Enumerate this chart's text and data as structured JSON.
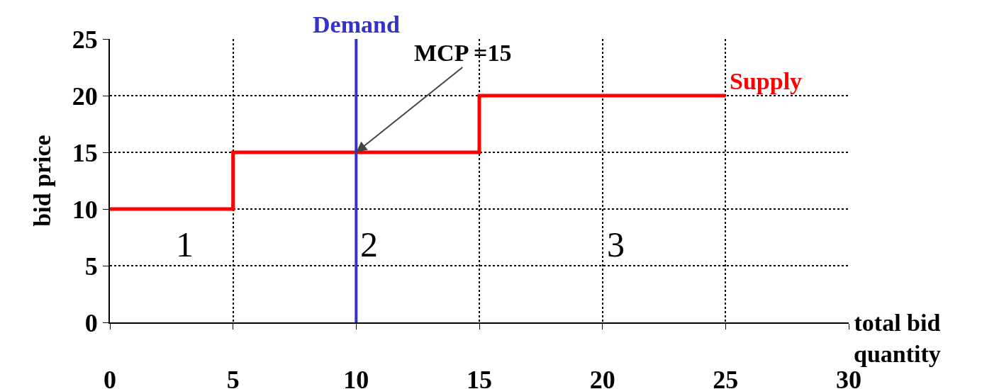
{
  "chart_data": {
    "type": "step",
    "xlabel": "total bid quantity",
    "ylabel": "bid price",
    "x": [
      0,
      5,
      15,
      25
    ],
    "series": [
      {
        "name": "Supply",
        "color": "#ff0000",
        "values": [
          10,
          15,
          20,
          20
        ]
      }
    ],
    "ref_lines": [
      {
        "axis": "x",
        "value": 10,
        "label": "Demand",
        "color": "#3333cc"
      }
    ],
    "annotations": [
      {
        "text": "MCP =15",
        "x": 10,
        "y": 15
      },
      "1",
      "2",
      "3"
    ],
    "xlim": [
      0,
      30
    ],
    "ylim": [
      0,
      25
    ],
    "xticks": [
      0,
      5,
      10,
      15,
      20,
      25,
      30
    ],
    "yticks": [
      0,
      5,
      10,
      15,
      20,
      25
    ],
    "grid": true,
    "line_style": "solid",
    "marker": "none",
    "legend": false
  }
}
